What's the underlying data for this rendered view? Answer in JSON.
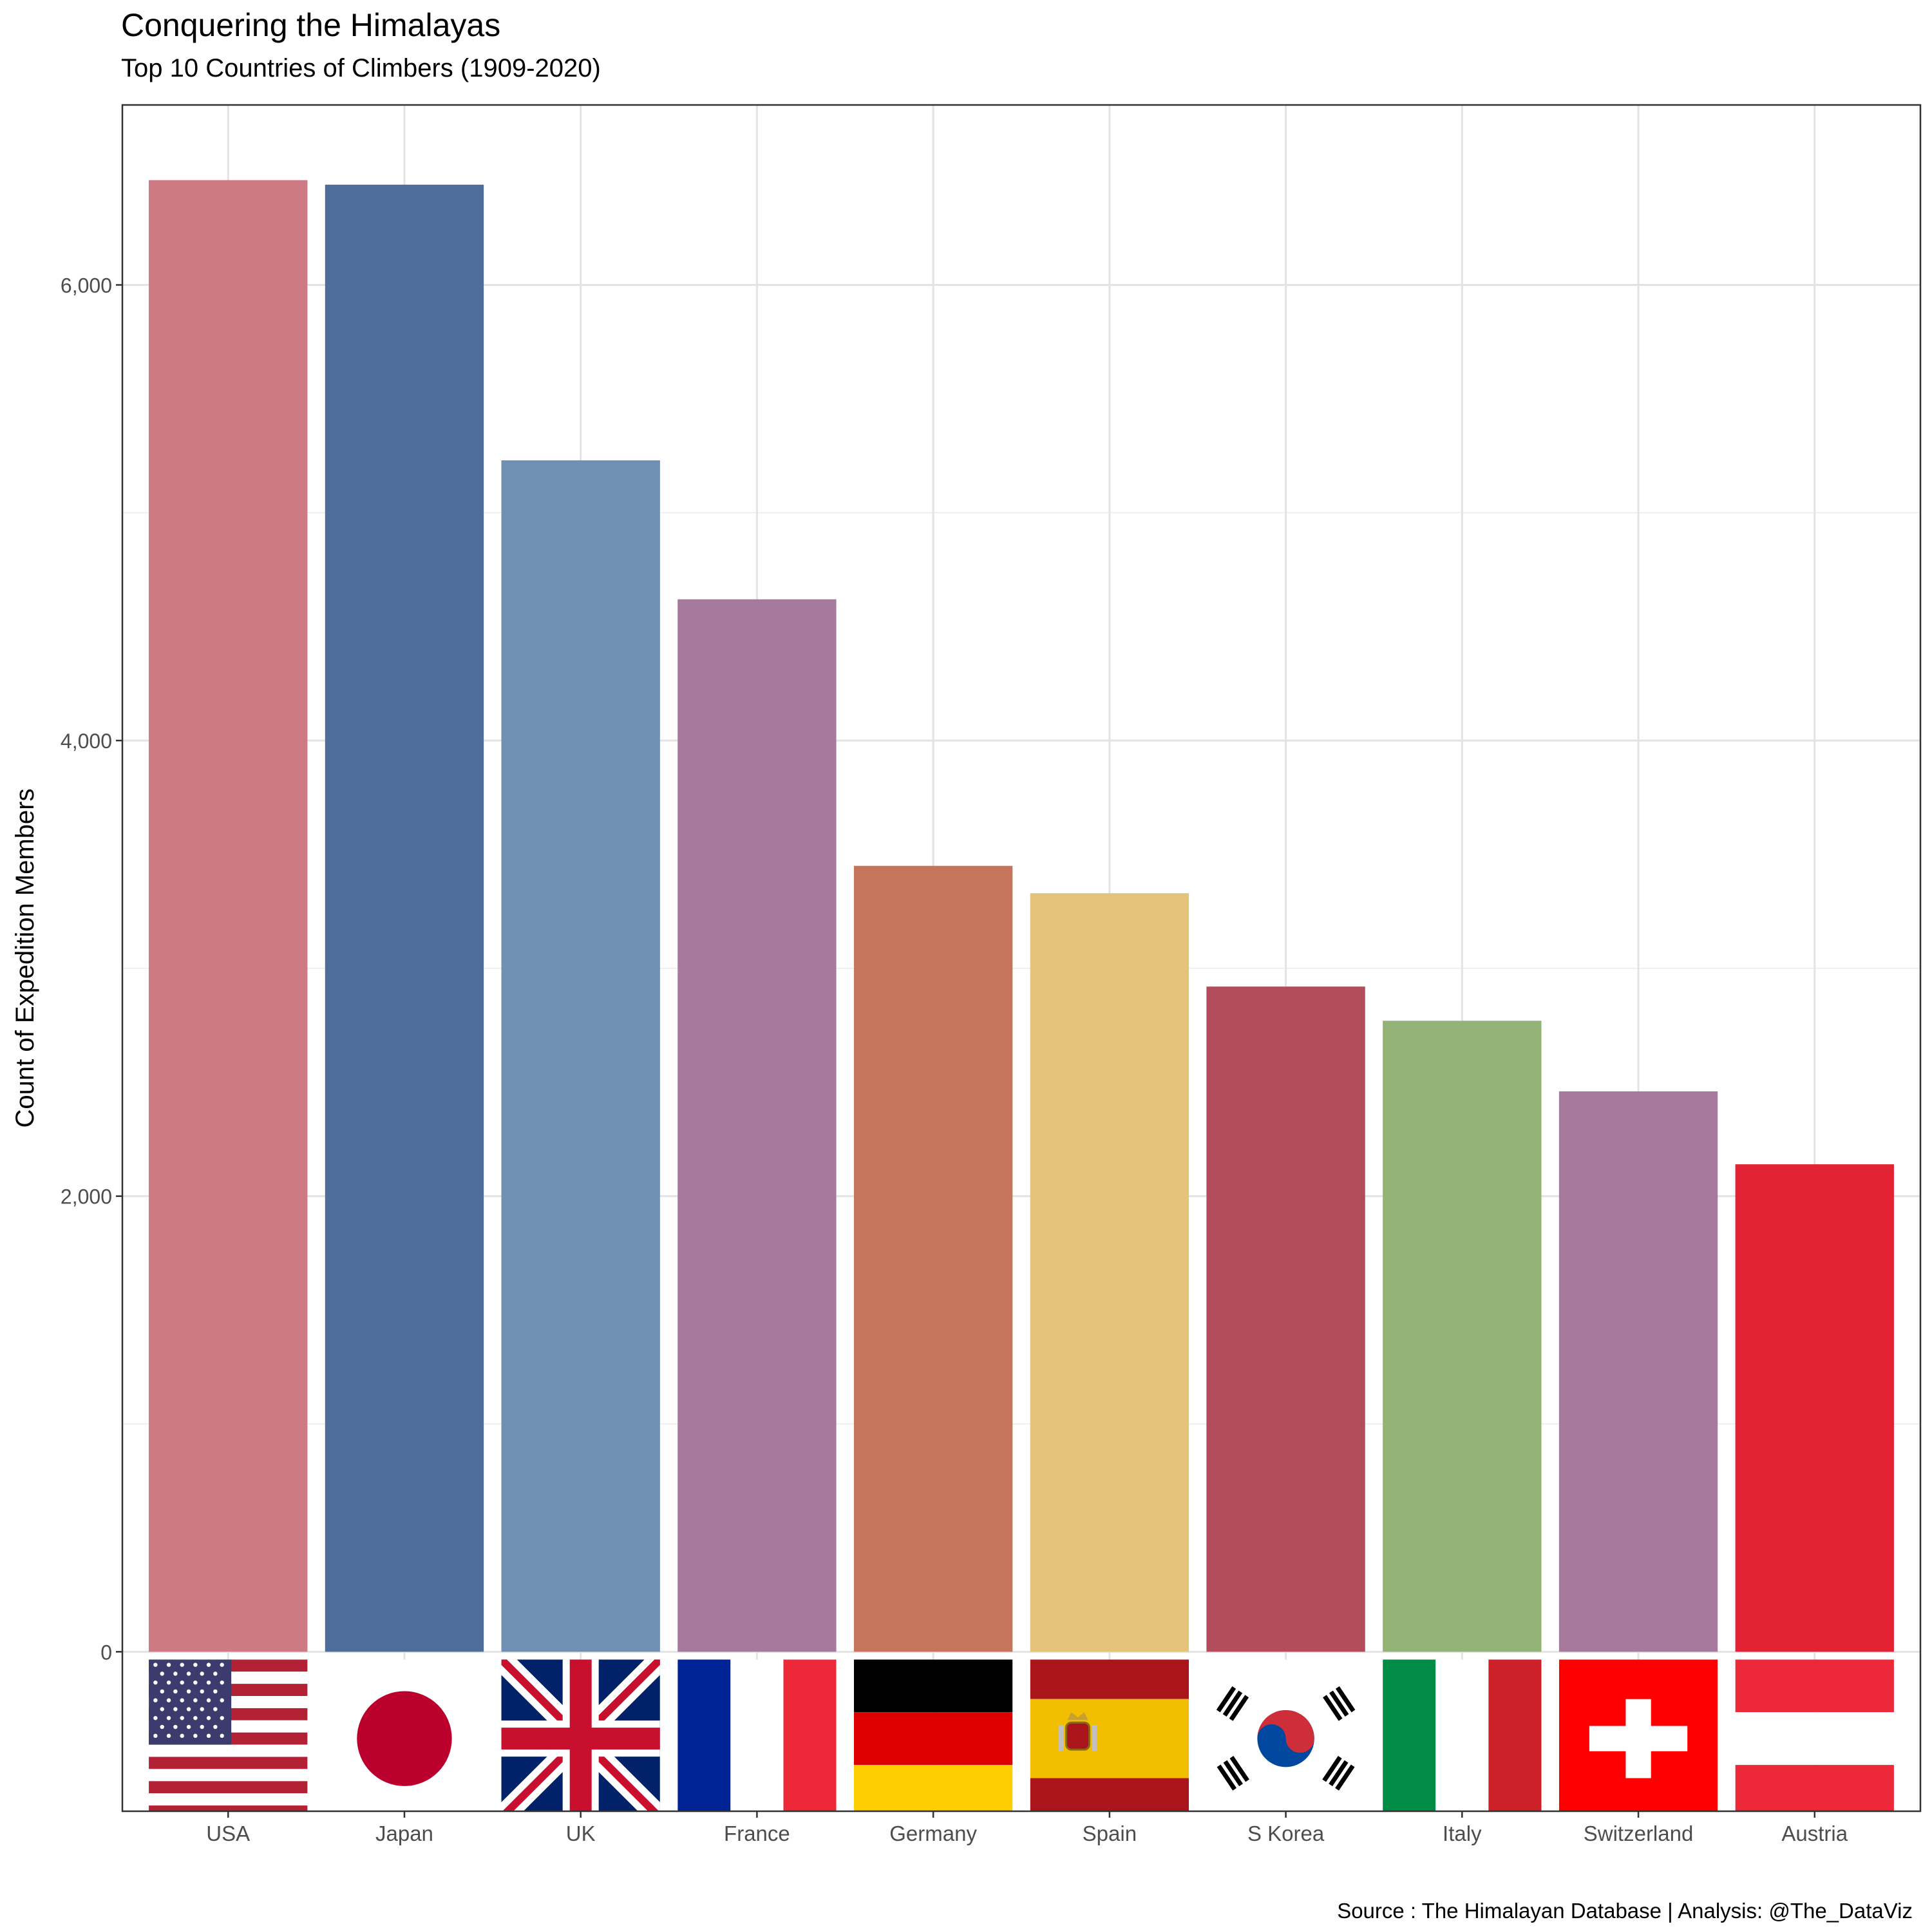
{
  "title": "Conquering the Himalayas",
  "subtitle": "Top 10 Countries of Climbers (1909-2020)",
  "caption": "Source : The Himalayan Database | Analysis: @The_DataViz",
  "chart_data": {
    "type": "bar",
    "title": "Conquering the Himalayas",
    "subtitle": "Top 10 Countries of Climbers (1909-2020)",
    "xlabel": "",
    "ylabel": "Count of Expedition Members",
    "categories": [
      "USA",
      "Japan",
      "UK",
      "France",
      "Germany",
      "Spain",
      "S Korea",
      "Italy",
      "Switzerland",
      "Austria"
    ],
    "values": [
      6460,
      6440,
      5230,
      4620,
      3450,
      3330,
      2920,
      2770,
      2460,
      2140
    ],
    "colors": [
      "#CE7A85",
      "#4D6D9A",
      "#6F8FB3",
      "#A57A9C",
      "#C4755C",
      "#E4C37A",
      "#B24B5A",
      "#94B377",
      "#A57A9C",
      "#E32333"
    ],
    "flags": [
      "usa-flag",
      "japan-flag",
      "uk-flag",
      "france-flag",
      "germany-flag",
      "spain-flag",
      "south-korea-flag",
      "italy-flag",
      "switzerland-flag",
      "austria-flag"
    ],
    "yticks": [
      0,
      2000,
      4000,
      6000
    ],
    "ytick_labels": [
      "0",
      "2,000",
      "4,000",
      "6,000"
    ],
    "ylim": [
      -700,
      6790
    ],
    "grid": true,
    "legend": "none"
  }
}
